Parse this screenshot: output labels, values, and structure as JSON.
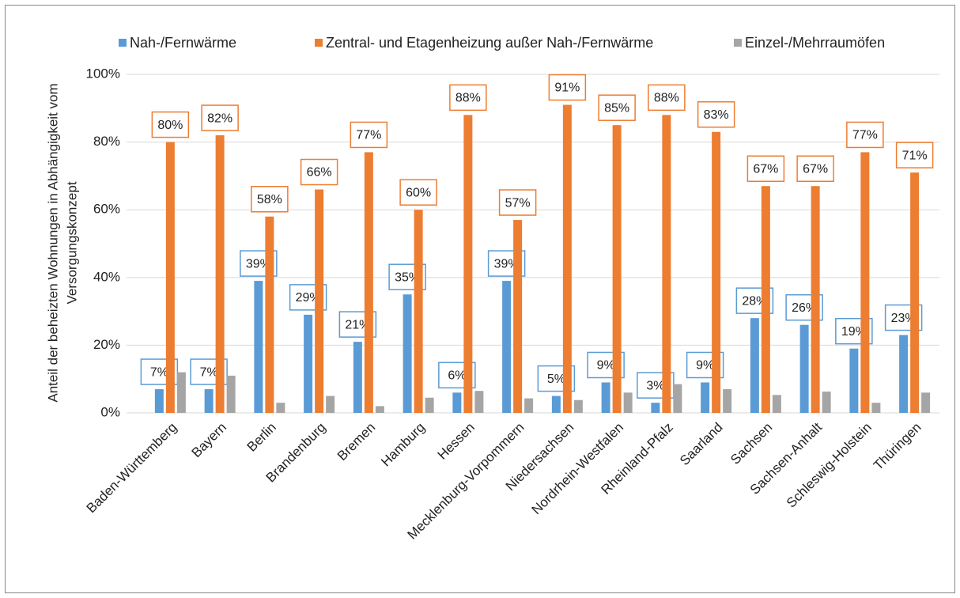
{
  "chart_data": {
    "type": "bar",
    "ylabel": [
      "Anteil der beheizten Wohnungen in Abhängigkeit vom",
      "Versorgungskonzept"
    ],
    "categories": [
      "Baden-Württemberg",
      "Bayern",
      "Berlin",
      "Brandenburg",
      "Bremen",
      "Hamburg",
      "Hessen",
      "Mecklenburg-Vorpommern",
      "Niedersachsen",
      "Nordrhein-Westfalen",
      "Rheinland-Pfalz",
      "Saarland",
      "Sachsen",
      "Sachsen-Anhalt",
      "Schleswig-Holstein",
      "Thüringen"
    ],
    "series": [
      {
        "name": "Nah-/Fernwärme",
        "color": "#5b9bd5",
        "values": [
          7,
          7,
          39,
          29,
          21,
          35,
          6,
          39,
          5,
          9,
          3,
          9,
          28,
          26,
          19,
          23
        ],
        "value_labels": [
          "7%",
          "7%",
          "39%",
          "29%",
          "21%",
          "35%",
          "6%",
          "39%",
          "5%",
          "9%",
          "3%",
          "9%",
          "28%",
          "26%",
          "19%",
          "23%"
        ]
      },
      {
        "name": "Zentral- und Etagenheizung außer Nah-/Fernwärme",
        "color": "#ed7d31",
        "values": [
          80,
          82,
          58,
          66,
          77,
          60,
          88,
          57,
          91,
          85,
          88,
          83,
          67,
          67,
          77,
          71
        ],
        "value_labels": [
          "80%",
          "82%",
          "58%",
          "66%",
          "77%",
          "60%",
          "88%",
          "57%",
          "91%",
          "85%",
          "88%",
          "83%",
          "67%",
          "67%",
          "77%",
          "71%"
        ]
      },
      {
        "name": "Einzel-/Mehrraumöfen",
        "color": "#a5a5a5",
        "values": [
          12,
          11,
          3,
          5,
          2,
          4.5,
          6.5,
          4.3,
          3.8,
          6,
          8.5,
          7,
          5.3,
          6.3,
          3,
          6
        ]
      }
    ],
    "ylim": [
      0,
      100
    ],
    "yticks": [
      {
        "value": 0,
        "label": "0%"
      },
      {
        "value": 20,
        "label": "20%"
      },
      {
        "value": 40,
        "label": "40%"
      },
      {
        "value": 60,
        "label": "60%"
      },
      {
        "value": 80,
        "label": "80%"
      },
      {
        "value": 100,
        "label": "100%"
      }
    ],
    "grid": true
  }
}
